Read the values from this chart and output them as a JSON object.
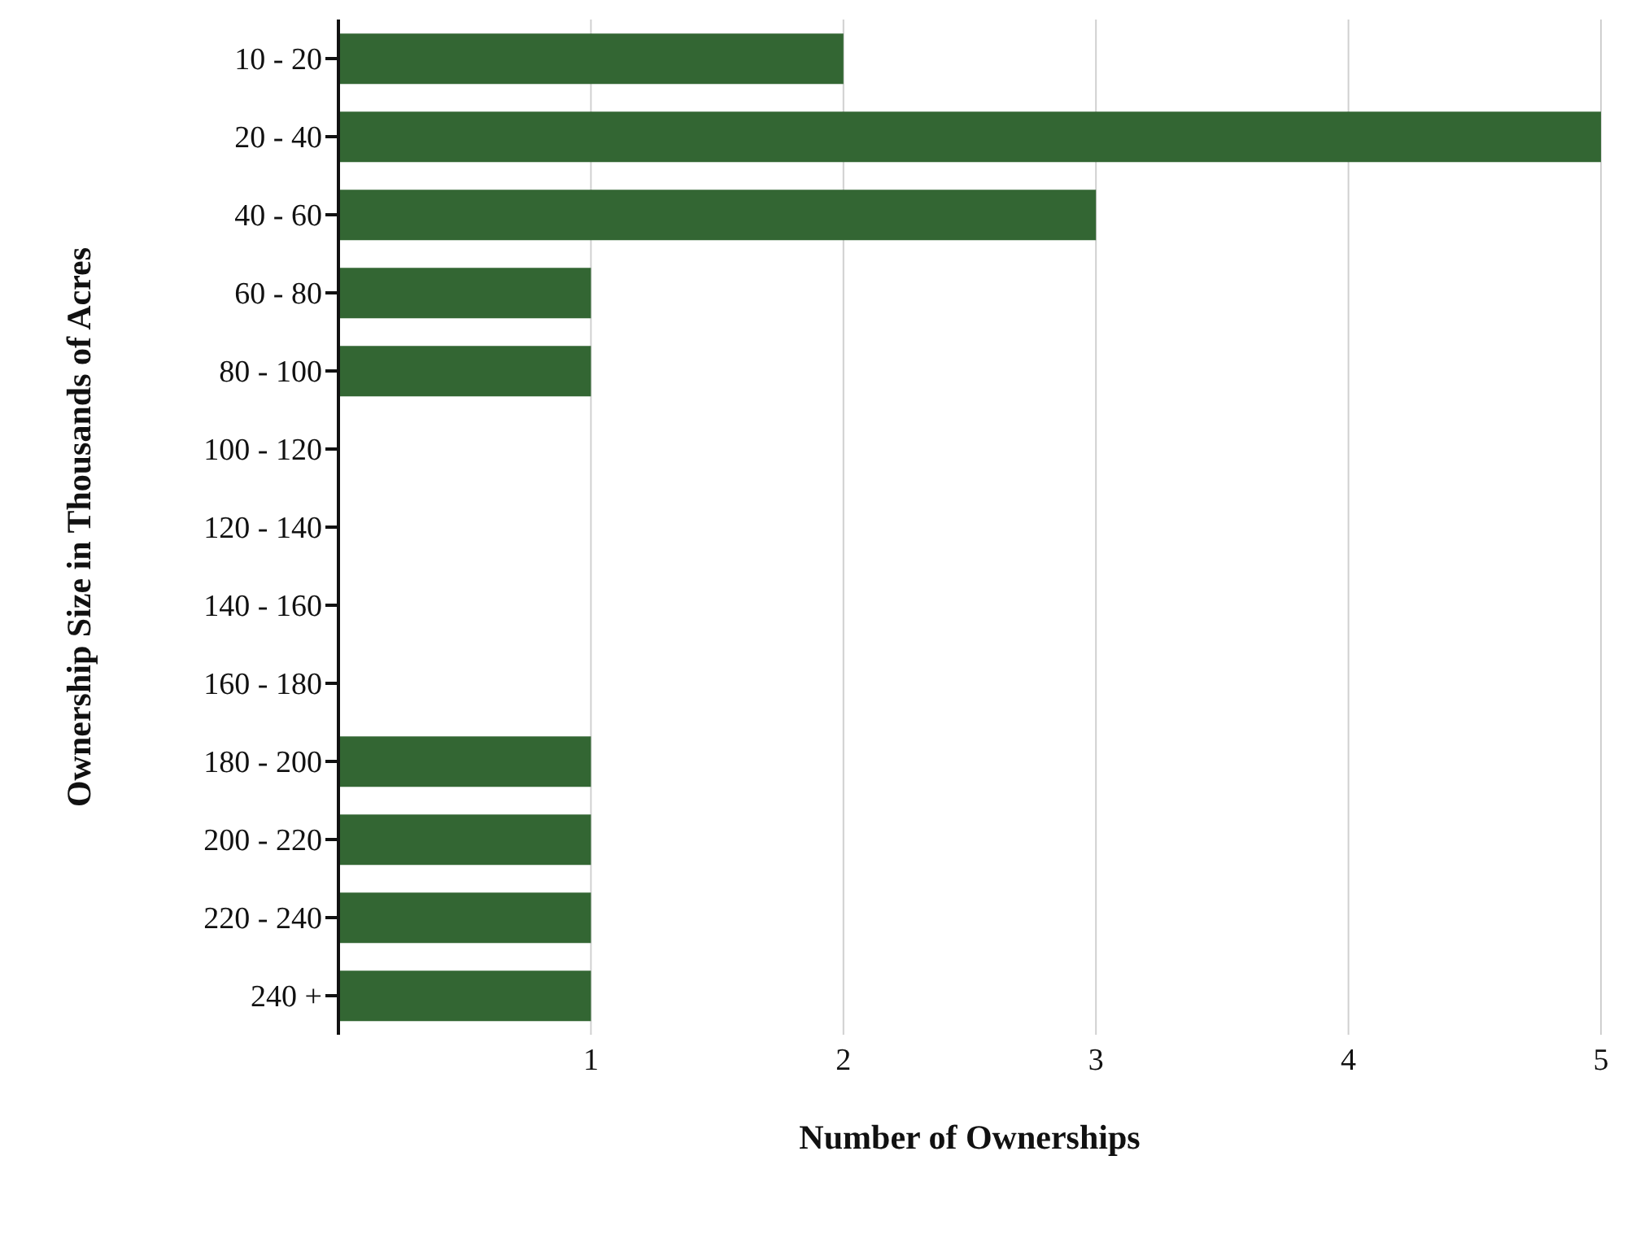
{
  "chart_data": {
    "type": "bar",
    "orientation": "horizontal",
    "xlabel": "Number of Ownerships",
    "ylabel": "Ownership Size in Thousands of Acres",
    "categories": [
      "10 - 20",
      "20 - 40",
      "40 - 60",
      "60 - 80",
      "80 - 100",
      "100 - 120",
      "120 - 140",
      "140 - 160",
      "160 - 180",
      "180 - 200",
      "200 - 220",
      "220 - 240",
      "240 +"
    ],
    "values": [
      2,
      5,
      3,
      1,
      1,
      0,
      0,
      0,
      0,
      1,
      1,
      1,
      1
    ],
    "color": "#336633",
    "xlim": [
      0,
      5
    ],
    "xticks": [
      1,
      2,
      3,
      4,
      5
    ],
    "grid": "x"
  }
}
